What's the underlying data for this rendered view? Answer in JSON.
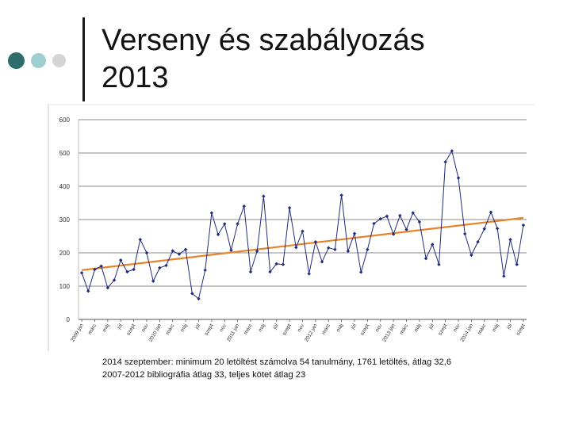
{
  "slide": {
    "title_line1": "Verseny és szabályozás",
    "title_line2": "2013",
    "notes": [
      "2014 szeptember: minimum 20 letöltést számolva 54 tanulmány, 1761 letöltés, átlag 32,6",
      "2007-2012 bibliográfia átlag 33, teljes kötet átlag 23"
    ]
  },
  "colors": {
    "series": "#1f2b78",
    "trend": "#e8822a",
    "grid": "#8c8c8c",
    "accent_dark": "#2f6c6c",
    "accent_light": "#9fcfd1"
  },
  "chart_data": {
    "type": "line",
    "ylim": [
      0,
      600
    ],
    "yticks": [
      0,
      100,
      200,
      300,
      400,
      500,
      600
    ],
    "grid": true,
    "legend": "none",
    "x_tick_labels": [
      {
        "label": "2009 jan",
        "index": 0
      },
      {
        "label": "márc",
        "index": 2
      },
      {
        "label": "máj",
        "index": 4
      },
      {
        "label": "júl",
        "index": 6
      },
      {
        "label": "szept",
        "index": 8
      },
      {
        "label": "nov",
        "index": 10
      },
      {
        "label": "2010 jan",
        "index": 12
      },
      {
        "label": "márc",
        "index": 14
      },
      {
        "label": "máj",
        "index": 16
      },
      {
        "label": "júl",
        "index": 18
      },
      {
        "label": "szept",
        "index": 20
      },
      {
        "label": "nov",
        "index": 22
      },
      {
        "label": "2011 jan",
        "index": 24
      },
      {
        "label": "márc",
        "index": 26
      },
      {
        "label": "máj",
        "index": 28
      },
      {
        "label": "júl",
        "index": 30
      },
      {
        "label": "szept",
        "index": 32
      },
      {
        "label": "nov",
        "index": 34
      },
      {
        "label": "2012 jan",
        "index": 36
      },
      {
        "label": "márc",
        "index": 38
      },
      {
        "label": "máj",
        "index": 40
      },
      {
        "label": "júl",
        "index": 42
      },
      {
        "label": "szept",
        "index": 44
      },
      {
        "label": "nov",
        "index": 46
      },
      {
        "label": "2013 jan",
        "index": 48
      },
      {
        "label": "márc",
        "index": 50
      },
      {
        "label": "máj",
        "index": 52
      },
      {
        "label": "júl",
        "index": 54
      },
      {
        "label": "szept",
        "index": 56
      },
      {
        "label": "nov",
        "index": 58
      },
      {
        "label": "2014 jan",
        "index": 60
      },
      {
        "label": "márc",
        "index": 62
      },
      {
        "label": "máj",
        "index": 64
      },
      {
        "label": "júl",
        "index": 66
      },
      {
        "label": "szept",
        "index": 68
      }
    ],
    "series": [
      {
        "values": [
          140,
          85,
          150,
          160,
          95,
          118,
          178,
          143,
          150,
          240,
          200,
          115,
          155,
          162,
          206,
          196,
          210,
          78,
          62,
          148,
          320,
          255,
          287,
          208,
          287,
          340,
          143,
          205,
          370,
          143,
          167,
          165,
          335,
          216,
          265,
          137,
          233,
          173,
          215,
          210,
          373,
          205,
          258,
          142,
          210,
          288,
          302,
          310,
          256,
          312,
          270,
          320,
          293,
          183,
          225,
          165,
          473,
          506,
          425,
          257,
          193,
          233,
          272,
          322,
          273,
          130,
          240,
          165,
          283
        ]
      }
    ],
    "trendline": {
      "start": 148,
      "end": 305
    }
  }
}
